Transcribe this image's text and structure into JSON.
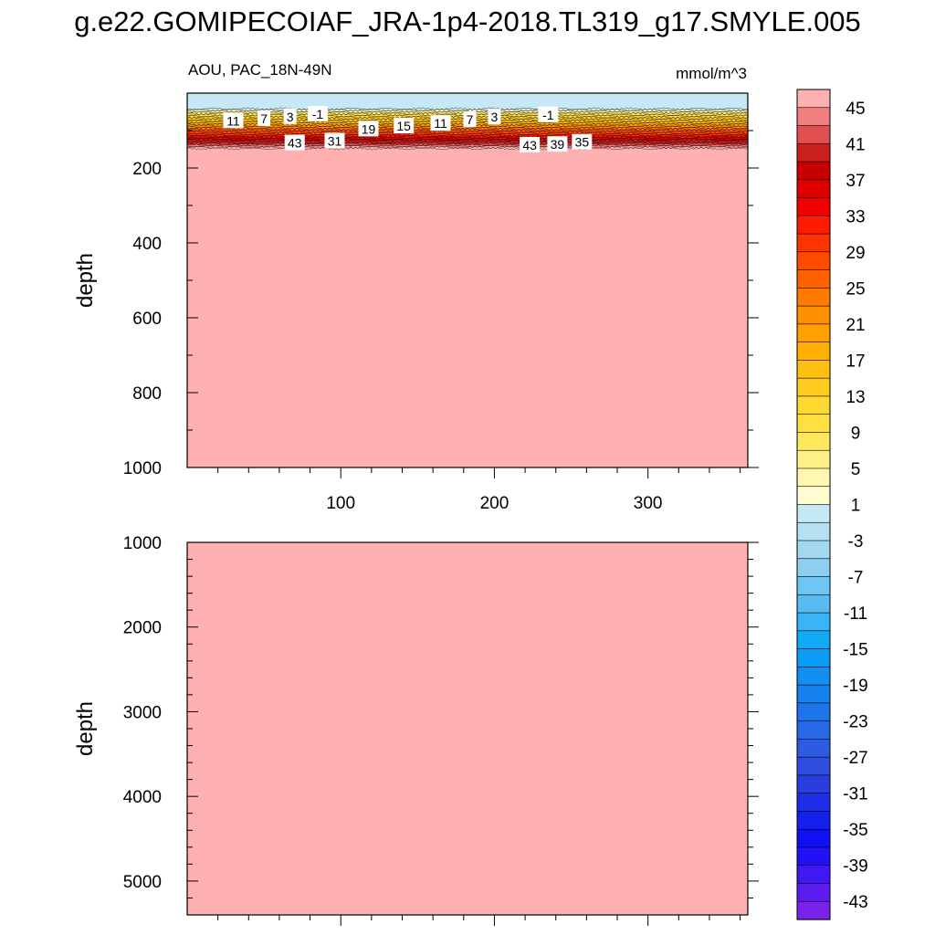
{
  "title": "g.e22.GOMIPECOIAF_JRA-1p4-2018.TL319_g17.SMYLE.005",
  "chart_data": [
    {
      "type": "contour",
      "panel": "upper",
      "left_label": "AOU, PAC_18N-49N",
      "right_label": "mmol/m^3",
      "xlabel": "",
      "ylabel": "depth",
      "xlim": [
        0,
        365
      ],
      "ylim": [
        1000,
        0
      ],
      "xticks": [
        100,
        200,
        300
      ],
      "yticks": [
        200,
        400,
        600,
        800,
        1000
      ],
      "contour_line_labels": [
        "11",
        "7",
        "3",
        "-1",
        "19",
        "15",
        "11",
        "7",
        "3",
        "-1",
        "43",
        "31",
        "43",
        "39",
        "35"
      ],
      "layers": [
        {
          "depth_range": [
            0,
            42
          ],
          "value": -3
        },
        {
          "depth_range": [
            42,
            60
          ],
          "value": 3
        },
        {
          "depth_range": [
            60,
            90
          ],
          "value": 11
        },
        {
          "depth_range": [
            90,
            120
          ],
          "value": 25
        },
        {
          "depth_range": [
            120,
            145
          ],
          "value": 41
        },
        {
          "depth_range": [
            145,
            1000
          ],
          "value": 46
        }
      ]
    },
    {
      "type": "contour",
      "panel": "lower",
      "ylabel": "depth",
      "xlim": [
        0,
        365
      ],
      "ylim": [
        5400,
        1000
      ],
      "yticks": [
        1000,
        2000,
        3000,
        4000,
        5000
      ],
      "uniform_value": 46
    }
  ],
  "colorbar": {
    "labels": [
      "45",
      "41",
      "37",
      "33",
      "29",
      "25",
      "21",
      "17",
      "13",
      "9",
      "5",
      "1",
      "-3",
      "-7",
      "-11",
      "-15",
      "-19",
      "-23",
      "-27",
      "-31",
      "-35",
      "-39",
      "-43"
    ],
    "colors": [
      "#ffb0b0",
      "#f07e7e",
      "#e05050",
      "#cc2020",
      "#c80000",
      "#de0000",
      "#f00000",
      "#ff1a00",
      "#ff3300",
      "#ff4a00",
      "#ff6000",
      "#ff7a00",
      "#ff8f00",
      "#ffa000",
      "#ffb000",
      "#ffbf10",
      "#ffcc20",
      "#ffd830",
      "#ffe040",
      "#ffe860",
      "#fff08a",
      "#fff6b0",
      "#fffcd0",
      "#c4e8f4",
      "#b4e0f2",
      "#a2d8f0",
      "#8ccff0",
      "#70c6f2",
      "#58bcf2",
      "#3ab4f4",
      "#10aaf5",
      "#0b9cf5",
      "#1090f2",
      "#1582ee",
      "#1e74ea",
      "#2668e6",
      "#2c5ce2",
      "#2f4ede",
      "#2a3ee0",
      "#1f2de6",
      "#1420ec",
      "#1010f4",
      "#2210f6",
      "#4018f4",
      "#5c1cf0",
      "#7a22ec"
    ]
  }
}
